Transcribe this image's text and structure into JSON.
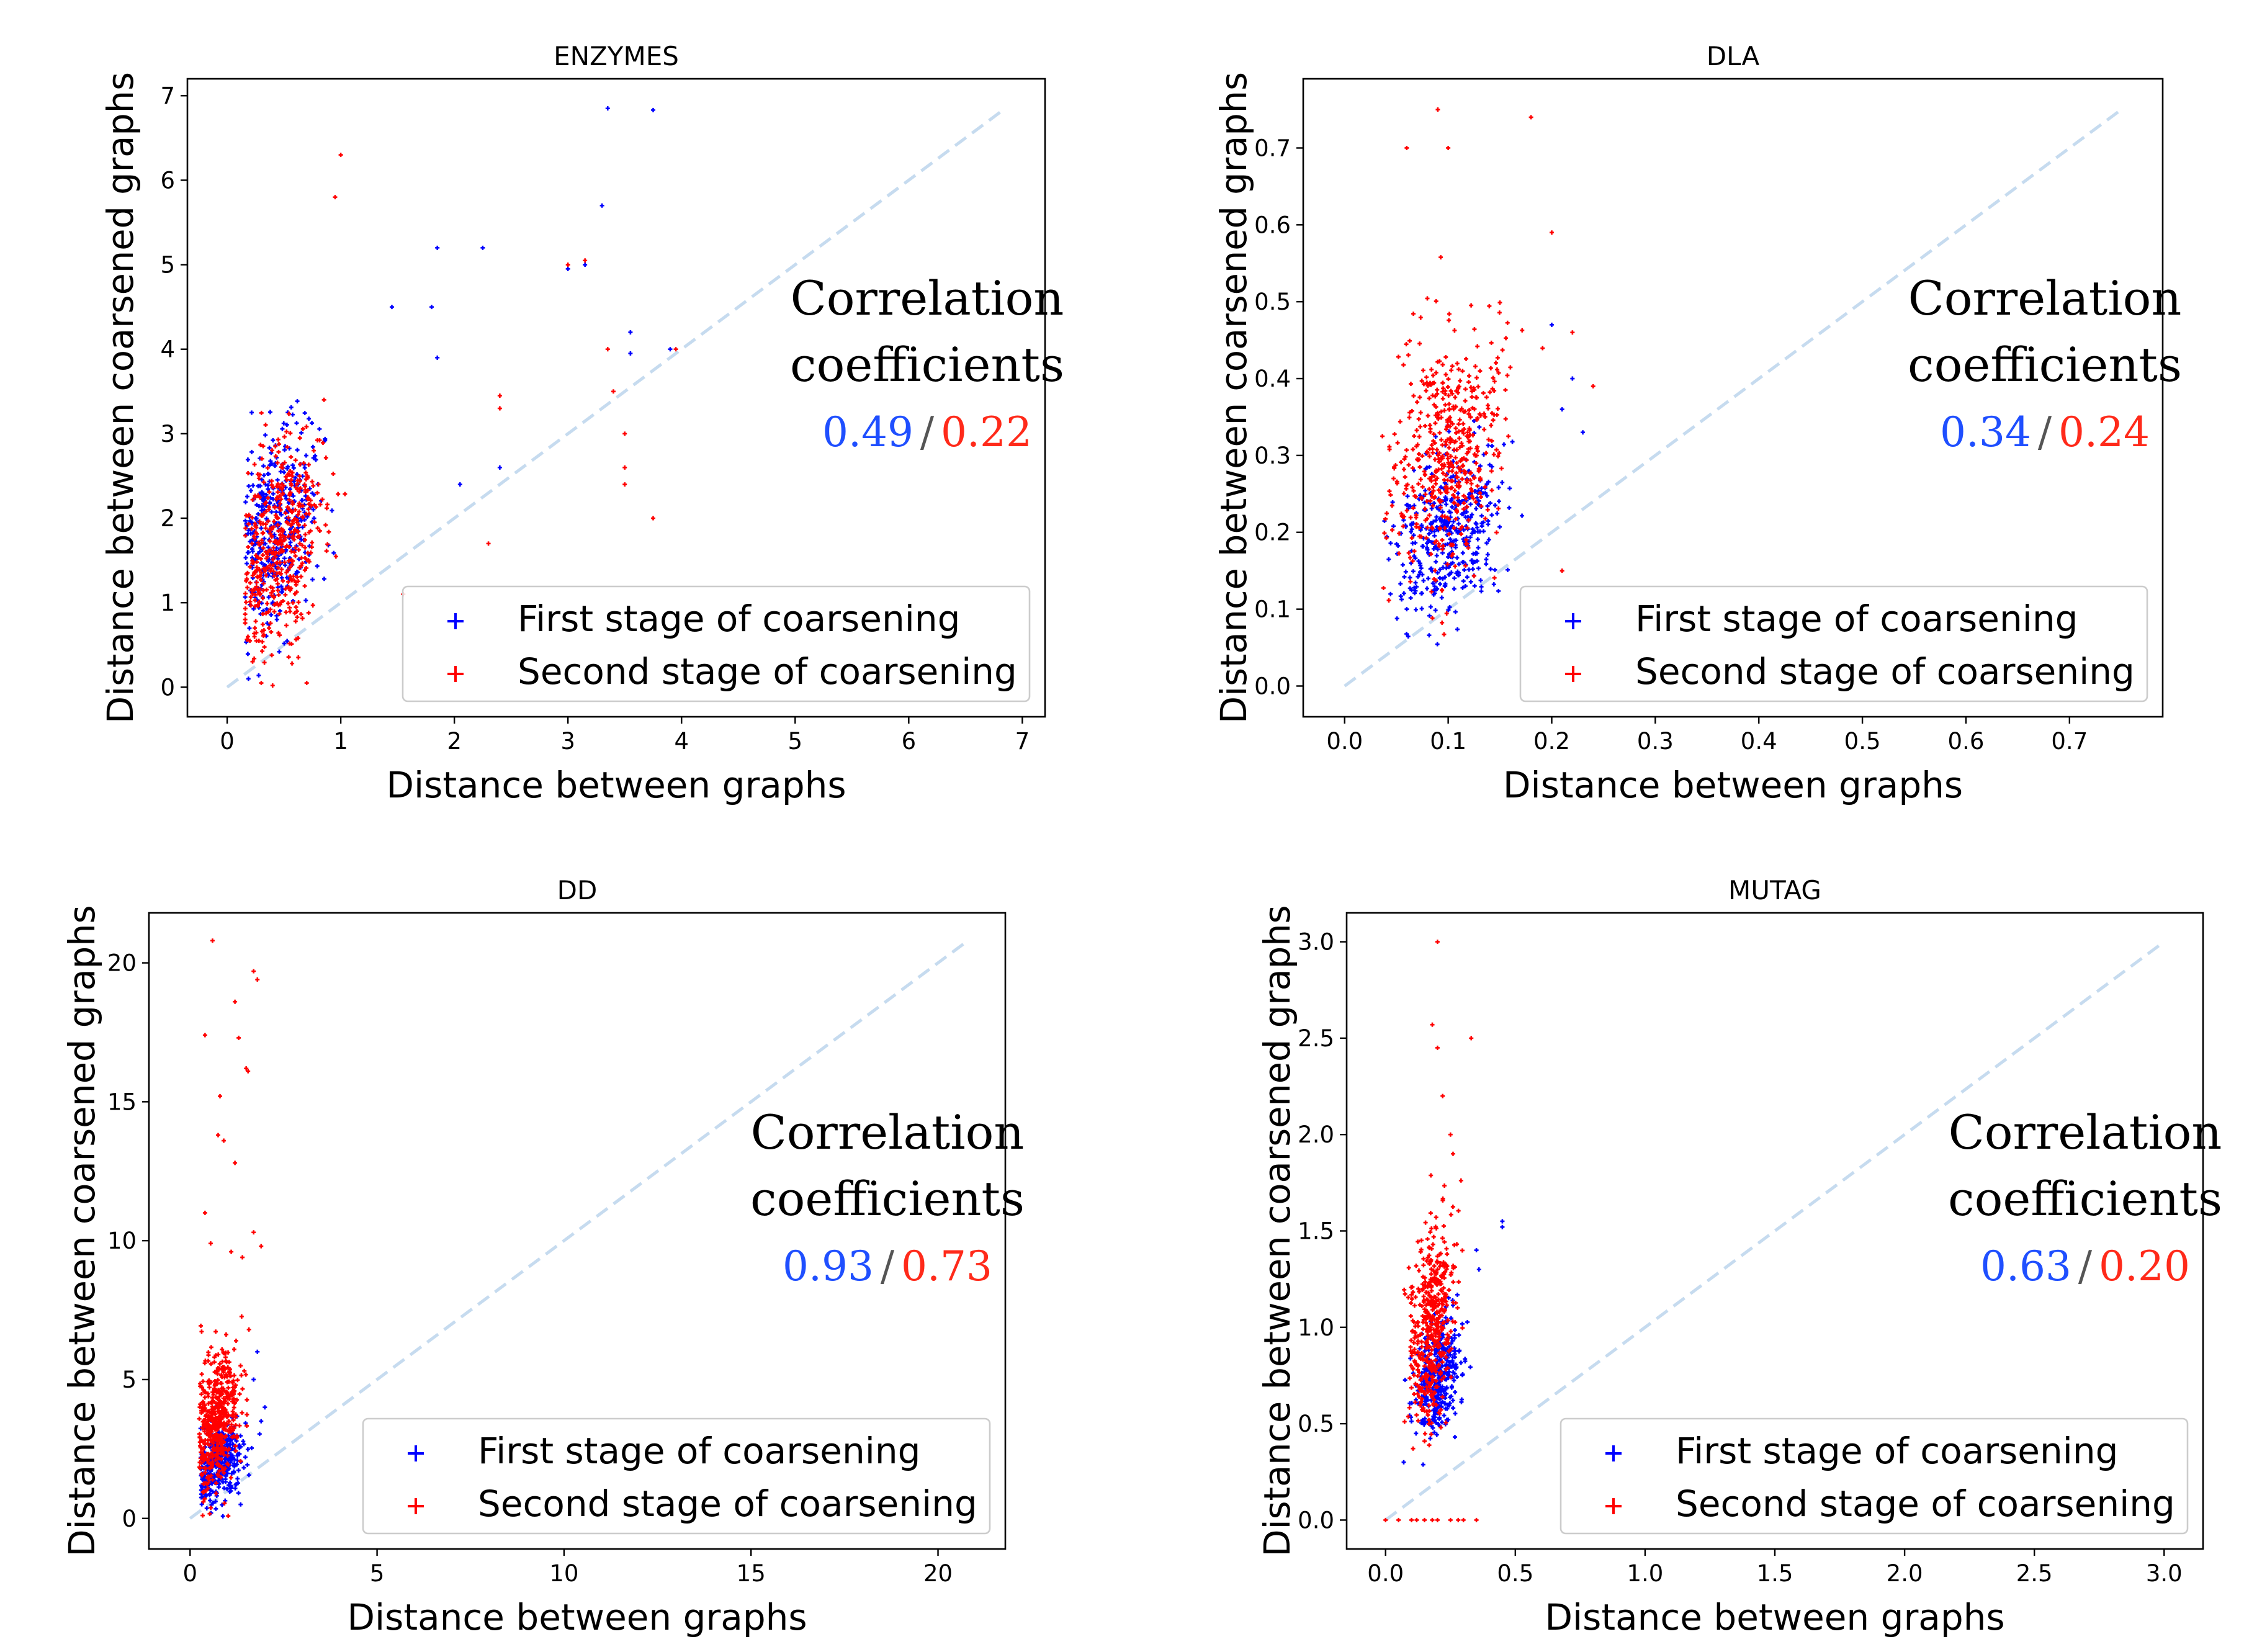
{
  "colors": {
    "first": "#0000ff",
    "second": "#ff0000",
    "diagonal": "#c6dbef",
    "first_text": "#1f4fff",
    "second_text": "#ff2a1a"
  },
  "chart_data": [
    {
      "type": "scatter",
      "title": "ENZYMES",
      "xlabel": "Distance between graphs",
      "ylabel": "Distance between coarsened graphs",
      "xlim": [
        -0.35,
        7.2
      ],
      "ylim": [
        -0.35,
        7.2
      ],
      "xticks": [
        0,
        1,
        2,
        3,
        4,
        5,
        6,
        7
      ],
      "yticks": [
        0,
        1,
        2,
        3,
        4,
        5,
        6,
        7
      ],
      "xtick_labels": [
        "0",
        "1",
        "2",
        "3",
        "4",
        "5",
        "6",
        "7"
      ],
      "ytick_labels": [
        "0",
        "1",
        "2",
        "3",
        "4",
        "5",
        "6",
        "7"
      ],
      "diagonal_max": 6.85,
      "series": [
        {
          "name": "First stage of coarsening",
          "color": "blue",
          "cluster": {
            "x_center": 0.45,
            "x_spread": 0.35,
            "y_center": 1.9,
            "y_spread": 1.0,
            "n": 380
          },
          "points": [
            [
              3.35,
              6.85
            ],
            [
              3.75,
              6.83
            ],
            [
              1.85,
              5.2
            ],
            [
              2.25,
              5.2
            ],
            [
              3.3,
              5.7
            ],
            [
              3.15,
              5.0
            ],
            [
              3.0,
              4.95
            ],
            [
              3.55,
              4.2
            ],
            [
              3.55,
              3.95
            ],
            [
              3.9,
              4.0
            ],
            [
              1.45,
              4.5
            ],
            [
              1.8,
              4.5
            ],
            [
              1.85,
              3.9
            ],
            [
              2.4,
              2.6
            ],
            [
              2.05,
              2.4
            ]
          ]
        },
        {
          "name": "Second stage of coarsening",
          "color": "red",
          "cluster": {
            "x_center": 0.45,
            "x_spread": 0.35,
            "y_center": 1.7,
            "y_spread": 1.1,
            "n": 480
          },
          "points": [
            [
              1.0,
              6.3
            ],
            [
              0.95,
              5.8
            ],
            [
              3.0,
              5.0
            ],
            [
              3.15,
              5.05
            ],
            [
              3.35,
              4.0
            ],
            [
              3.4,
              3.5
            ],
            [
              3.5,
              3.0
            ],
            [
              3.5,
              2.6
            ],
            [
              3.5,
              2.4
            ],
            [
              3.75,
              2.0
            ],
            [
              3.95,
              4.0
            ],
            [
              2.4,
              3.3
            ],
            [
              2.4,
              3.45
            ],
            [
              2.3,
              1.7
            ],
            [
              1.55,
              1.1
            ],
            [
              0.3,
              0.05
            ],
            [
              0.4,
              0.02
            ],
            [
              0.7,
              0.05
            ]
          ]
        }
      ],
      "annotation": {
        "line1": "Correlation",
        "line2": "coefficients",
        "first_value": "0.49",
        "separator": "/",
        "second_value": "0.22"
      },
      "legend": {
        "placement": "lower-right",
        "entries": [
          "First stage of coarsening",
          "Second stage of coarsening"
        ]
      }
    },
    {
      "type": "scatter",
      "title": "DLA",
      "xlabel": "Distance between graphs",
      "ylabel": "Distance between coarsened graphs",
      "xlim": [
        -0.04,
        0.79
      ],
      "ylim": [
        -0.04,
        0.79
      ],
      "xticks": [
        0.0,
        0.1,
        0.2,
        0.3,
        0.4,
        0.5,
        0.6,
        0.7
      ],
      "yticks": [
        0.0,
        0.1,
        0.2,
        0.3,
        0.4,
        0.5,
        0.6,
        0.7
      ],
      "xtick_labels": [
        "0.0",
        "0.1",
        "0.2",
        "0.3",
        "0.4",
        "0.5",
        "0.6",
        "0.7"
      ],
      "ytick_labels": [
        "0.0",
        "0.1",
        "0.2",
        "0.3",
        "0.4",
        "0.5",
        "0.6",
        "0.7"
      ],
      "diagonal_max": 0.75,
      "series": [
        {
          "name": "First stage of coarsening",
          "color": "blue",
          "cluster": {
            "x_center": 0.1,
            "x_spread": 0.045,
            "y_center": 0.2,
            "y_spread": 0.09,
            "n": 420
          },
          "points": [
            [
              0.2,
              0.47
            ],
            [
              0.22,
              0.4
            ],
            [
              0.23,
              0.33
            ],
            [
              0.21,
              0.36
            ],
            [
              0.06,
              0.1
            ]
          ]
        },
        {
          "name": "Second stage of coarsening",
          "color": "red",
          "cluster": {
            "x_center": 0.1,
            "x_spread": 0.05,
            "y_center": 0.3,
            "y_spread": 0.14,
            "n": 520
          },
          "points": [
            [
              0.09,
              0.75
            ],
            [
              0.18,
              0.74
            ],
            [
              0.06,
              0.7
            ],
            [
              0.1,
              0.7
            ],
            [
              0.2,
              0.59
            ],
            [
              0.22,
              0.46
            ],
            [
              0.24,
              0.39
            ],
            [
              0.21,
              0.15
            ]
          ]
        }
      ],
      "annotation": {
        "line1": "Correlation",
        "line2": "coefficients",
        "first_value": "0.34",
        "separator": "/",
        "second_value": "0.24"
      },
      "legend": {
        "placement": "lower-right",
        "entries": [
          "First stage of coarsening",
          "Second stage of coarsening"
        ]
      }
    },
    {
      "type": "scatter",
      "title": "DD",
      "xlabel": "Distance between graphs",
      "ylabel": "Distance between coarsened graphs",
      "xlim": [
        -1.1,
        21.8
      ],
      "ylim": [
        -1.1,
        21.8
      ],
      "xticks": [
        0,
        5,
        10,
        15,
        20
      ],
      "yticks": [
        0,
        5,
        10,
        15,
        20
      ],
      "xtick_labels": [
        "0",
        "5",
        "10",
        "15",
        "20"
      ],
      "ytick_labels": [
        "0",
        "5",
        "10",
        "15",
        "20"
      ],
      "diagonal_max": 20.7,
      "series": [
        {
          "name": "First stage of coarsening",
          "color": "blue",
          "cluster": {
            "x_center": 0.8,
            "x_spread": 0.6,
            "y_center": 2.0,
            "y_spread": 1.2,
            "n": 360
          },
          "points": [
            [
              1.8,
              6.0
            ],
            [
              1.7,
              5.0
            ],
            [
              2.0,
              4.0
            ],
            [
              1.9,
              3.5
            ]
          ]
        },
        {
          "name": "Second stage of coarsening",
          "color": "red",
          "cluster": {
            "x_center": 0.7,
            "x_spread": 0.55,
            "y_center": 3.5,
            "y_spread": 2.2,
            "n": 520
          },
          "points": [
            [
              0.6,
              20.8
            ],
            [
              1.7,
              19.7
            ],
            [
              1.8,
              19.4
            ],
            [
              1.2,
              18.6
            ],
            [
              1.3,
              17.3
            ],
            [
              0.4,
              17.4
            ],
            [
              1.5,
              16.2
            ],
            [
              1.55,
              16.1
            ],
            [
              0.8,
              15.2
            ],
            [
              0.75,
              13.8
            ],
            [
              0.9,
              13.6
            ],
            [
              1.2,
              12.8
            ],
            [
              0.4,
              11.0
            ],
            [
              0.55,
              9.9
            ],
            [
              1.7,
              10.3
            ],
            [
              1.9,
              9.8
            ],
            [
              1.1,
              9.6
            ],
            [
              1.4,
              9.4
            ]
          ]
        }
      ],
      "annotation": {
        "line1": "Correlation",
        "line2": "coefficients",
        "first_value": "0.93",
        "separator": "/",
        "second_value": "0.73"
      },
      "legend": {
        "placement": "lower-right",
        "entries": [
          "First stage of coarsening",
          "Second stage of coarsening"
        ]
      }
    },
    {
      "type": "scatter",
      "title": "MUTAG",
      "xlabel": "Distance between graphs",
      "ylabel": "Distance between coarsened graphs",
      "xlim": [
        -0.15,
        3.15
      ],
      "ylim": [
        -0.15,
        3.15
      ],
      "xticks": [
        0.0,
        0.5,
        1.0,
        1.5,
        2.0,
        2.5,
        3.0
      ],
      "yticks": [
        0.0,
        0.5,
        1.0,
        1.5,
        2.0,
        2.5,
        3.0
      ],
      "xtick_labels": [
        "0.0",
        "0.5",
        "1.0",
        "1.5",
        "2.0",
        "2.5",
        "3.0"
      ],
      "ytick_labels": [
        "0.0",
        "0.5",
        "1.0",
        "1.5",
        "2.0",
        "2.5",
        "3.0"
      ],
      "diagonal_max": 3.0,
      "series": [
        {
          "name": "First stage of coarsening",
          "color": "blue",
          "cluster": {
            "x_center": 0.2,
            "x_spread": 0.08,
            "y_center": 0.75,
            "y_spread": 0.25,
            "n": 380
          },
          "points": [
            [
              0.45,
              1.55
            ],
            [
              0.45,
              1.52
            ],
            [
              0.35,
              1.4
            ],
            [
              0.36,
              1.3
            ],
            [
              0.07,
              0.3
            ]
          ]
        },
        {
          "name": "Second stage of coarsening",
          "color": "red",
          "cluster": {
            "x_center": 0.18,
            "x_spread": 0.08,
            "y_center": 1.0,
            "y_spread": 0.45,
            "n": 480
          },
          "points": [
            [
              0.2,
              3.0
            ],
            [
              0.18,
              2.57
            ],
            [
              0.33,
              2.5
            ],
            [
              0.2,
              2.45
            ],
            [
              0.22,
              2.2
            ],
            [
              0.25,
              2.0
            ],
            [
              0.26,
              1.9
            ],
            [
              0.0,
              0.0
            ],
            [
              0.05,
              0.0
            ],
            [
              0.1,
              0.0
            ],
            [
              0.15,
              0.0
            ],
            [
              0.2,
              0.0
            ],
            [
              0.25,
              0.0
            ],
            [
              0.3,
              0.0
            ],
            [
              0.35,
              0.0
            ],
            [
              0.12,
              0.0
            ],
            [
              0.18,
              0.0
            ],
            [
              0.28,
              0.0
            ]
          ]
        }
      ],
      "annotation": {
        "line1": "Correlation",
        "line2": "coefficients",
        "first_value": "0.63",
        "separator": "/",
        "second_value": "0.20"
      },
      "legend": {
        "placement": "lower-right",
        "entries": [
          "First stage of coarsening",
          "Second stage of coarsening"
        ]
      }
    }
  ]
}
